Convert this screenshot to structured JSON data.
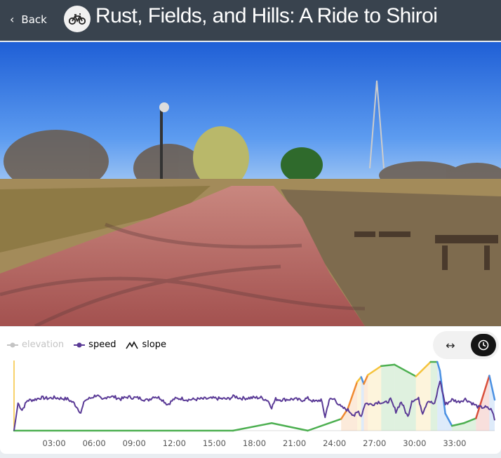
{
  "header": {
    "back_label": "Back",
    "title": "Rust, Fields, and Hills: A Ride to Shiroi",
    "activity_icon": "bicycle-icon"
  },
  "legend": {
    "items": [
      {
        "label": "elevation",
        "enabled": false,
        "color": "#c4c4c4"
      },
      {
        "label": "speed",
        "enabled": true,
        "color": "#5a3a96"
      },
      {
        "label": "slope",
        "enabled": true,
        "color": "#111111"
      }
    ]
  },
  "view_toggle": {
    "options": [
      {
        "icon": "distance-arrows-icon",
        "active": false
      },
      {
        "icon": "clock-icon",
        "active": true
      }
    ]
  },
  "chart_data": {
    "type": "line",
    "x_unit": "elapsed time (mm:ss)",
    "xlim_minutes": [
      0,
      36
    ],
    "x_ticks": [
      "03:00",
      "06:00",
      "09:00",
      "12:00",
      "15:00",
      "18:00",
      "21:00",
      "24:00",
      "27:00",
      "30:00",
      "33:00"
    ],
    "colors": {
      "flat": "#4caf50",
      "moderate": "#f5c33b",
      "steep": "#f08a30",
      "very_steep": "#d9503c",
      "descent": "#4a90e2",
      "speed": "#5a3a96"
    },
    "slope_series": [
      [
        0,
        0
      ],
      [
        16.4,
        0
      ],
      [
        19.3,
        11
      ],
      [
        22,
        0
      ],
      [
        24.5,
        17
      ],
      [
        25,
        32
      ],
      [
        25.7,
        71
      ],
      [
        26,
        78
      ],
      [
        26.2,
        68
      ],
      [
        26.5,
        81
      ],
      [
        27.5,
        94
      ],
      [
        28.5,
        96
      ],
      [
        30.1,
        79
      ],
      [
        31.2,
        100
      ],
      [
        31.7,
        100
      ],
      [
        31.9,
        87
      ],
      [
        32.3,
        25
      ],
      [
        32.8,
        7
      ],
      [
        33.7,
        11
      ],
      [
        34.6,
        18
      ],
      [
        35.6,
        80
      ],
      [
        36,
        45
      ]
    ],
    "speed_series": [
      [
        0,
        0
      ],
      [
        0.3,
        40
      ],
      [
        0.6,
        30
      ],
      [
        1,
        44
      ],
      [
        1.5,
        45
      ],
      [
        2,
        48
      ],
      [
        2.5,
        47
      ],
      [
        3,
        48
      ],
      [
        3.5,
        47
      ],
      [
        4,
        46
      ],
      [
        4.5,
        40
      ],
      [
        5,
        26
      ],
      [
        5.3,
        44
      ],
      [
        5.8,
        48
      ],
      [
        6.2,
        52
      ],
      [
        6.6,
        44
      ],
      [
        7,
        50
      ],
      [
        7.5,
        49
      ],
      [
        8,
        46
      ],
      [
        8.5,
        49
      ],
      [
        9,
        48
      ],
      [
        9.5,
        47
      ],
      [
        10,
        44
      ],
      [
        10.5,
        50
      ],
      [
        11,
        47
      ],
      [
        11.5,
        38
      ],
      [
        12,
        46
      ],
      [
        12.5,
        47
      ],
      [
        13,
        45
      ],
      [
        14,
        46
      ],
      [
        15,
        47
      ],
      [
        16,
        46
      ],
      [
        16.5,
        50
      ],
      [
        17,
        47
      ],
      [
        18,
        48
      ],
      [
        18.5,
        48
      ],
      [
        19,
        44
      ],
      [
        19.3,
        34
      ],
      [
        19.6,
        46
      ],
      [
        20,
        45
      ],
      [
        21,
        46
      ],
      [
        21.5,
        44
      ],
      [
        22,
        47
      ],
      [
        22.5,
        42
      ],
      [
        23,
        45
      ],
      [
        23.3,
        20
      ],
      [
        23.6,
        45
      ],
      [
        24,
        46
      ],
      [
        24.5,
        34
      ],
      [
        25,
        30
      ],
      [
        25.5,
        22
      ],
      [
        25.8,
        28
      ],
      [
        26,
        21
      ],
      [
        26.3,
        40
      ],
      [
        26.8,
        38
      ],
      [
        27.3,
        42
      ],
      [
        27.8,
        40
      ],
      [
        28.2,
        45
      ],
      [
        28.6,
        28
      ],
      [
        29,
        42
      ],
      [
        29.5,
        20
      ],
      [
        29.8,
        44
      ],
      [
        30.3,
        46
      ],
      [
        30.6,
        26
      ],
      [
        31,
        44
      ],
      [
        31.5,
        38
      ],
      [
        31.9,
        73
      ],
      [
        32.3,
        38
      ],
      [
        32.8,
        45
      ],
      [
        33.3,
        42
      ],
      [
        33.8,
        46
      ],
      [
        34.3,
        40
      ],
      [
        34.8,
        34
      ],
      [
        35.3,
        34
      ],
      [
        35.8,
        30
      ],
      [
        36,
        15
      ]
    ]
  }
}
